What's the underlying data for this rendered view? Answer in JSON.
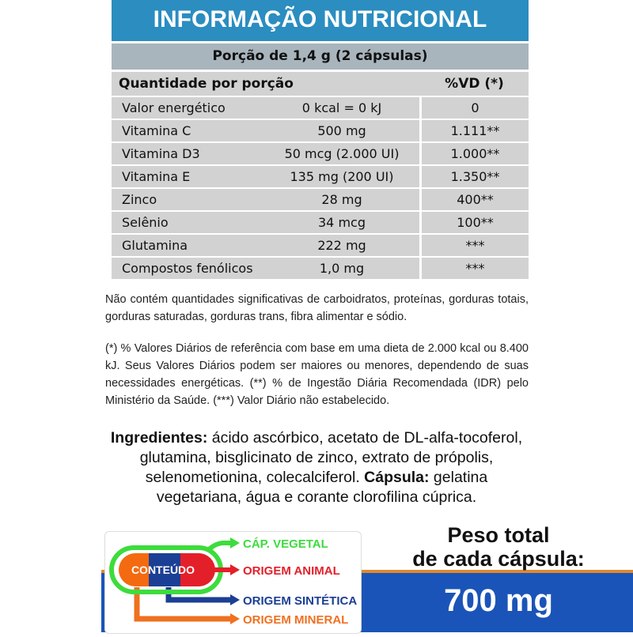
{
  "title": "INFORMAÇÃO NUTRICIONAL",
  "portion": "Porção de 1,4 g (2 cápsulas)",
  "header": {
    "qty": "Quantidade por porção",
    "vd": "%VD (*)"
  },
  "rows": [
    {
      "name": "Valor energético",
      "amount": "0 kcal = 0 kJ",
      "vd": "0"
    },
    {
      "name": "Vitamina C",
      "amount": "500 mg",
      "vd": "1.111**"
    },
    {
      "name": "Vitamina D3",
      "amount": "50 mcg (2.000 UI)",
      "vd": "1.000**"
    },
    {
      "name": "Vitamina E",
      "amount": "135 mg (200 UI)",
      "vd": "1.350**"
    },
    {
      "name": "Zinco",
      "amount": "28 mg",
      "vd": "400**"
    },
    {
      "name": "Selênio",
      "amount": "34 mcg",
      "vd": "100**"
    },
    {
      "name": "Glutamina",
      "amount": "222 mg",
      "vd": "***"
    },
    {
      "name": "Compostos fenólicos",
      "amount": "1,0 mg",
      "vd": "***"
    }
  ],
  "note1": "Não contém quantidades significativas de carboidratos, proteínas, gorduras totais, gorduras saturadas, gorduras trans, fibra alimentar e sódio.",
  "note2": "(*) % Valores Diários de referência com base em uma dieta de 2.000 kcal ou 8.400 kJ. Seus Valores Diários podem ser maiores ou menores, dependendo de suas necessidades energéticas. (**) % de Ingestão Diária Recomendada (IDR) pelo Ministério da Saúde. (***) Valor Diário não estabelecido.",
  "ingredients": {
    "label": "Ingredientes:",
    "text": " ácido ascórbico, acetato de DL-alfa-tocoferol, glutamina, bisglicinato de zinco, extrato de própolis, selenometionina, colecalciferol. ",
    "capsule_label": "Cápsula:",
    "capsule_text": " gelatina vegetariana, água e corante clorofilina cúprica."
  },
  "legend": {
    "center": "CONTEÚDO",
    "items": [
      "CÁP. VEGETAL",
      "ORIGEM ANIMAL",
      "ORIGEM SINTÉTICA",
      "ORIGEM MINERAL"
    ],
    "colors": [
      "#3ddc3d",
      "#e3202a",
      "#1b3f94",
      "#f07020"
    ]
  },
  "weight": {
    "line1": "Peso total",
    "line2": "de cada cápsula:",
    "value": "700 mg"
  }
}
